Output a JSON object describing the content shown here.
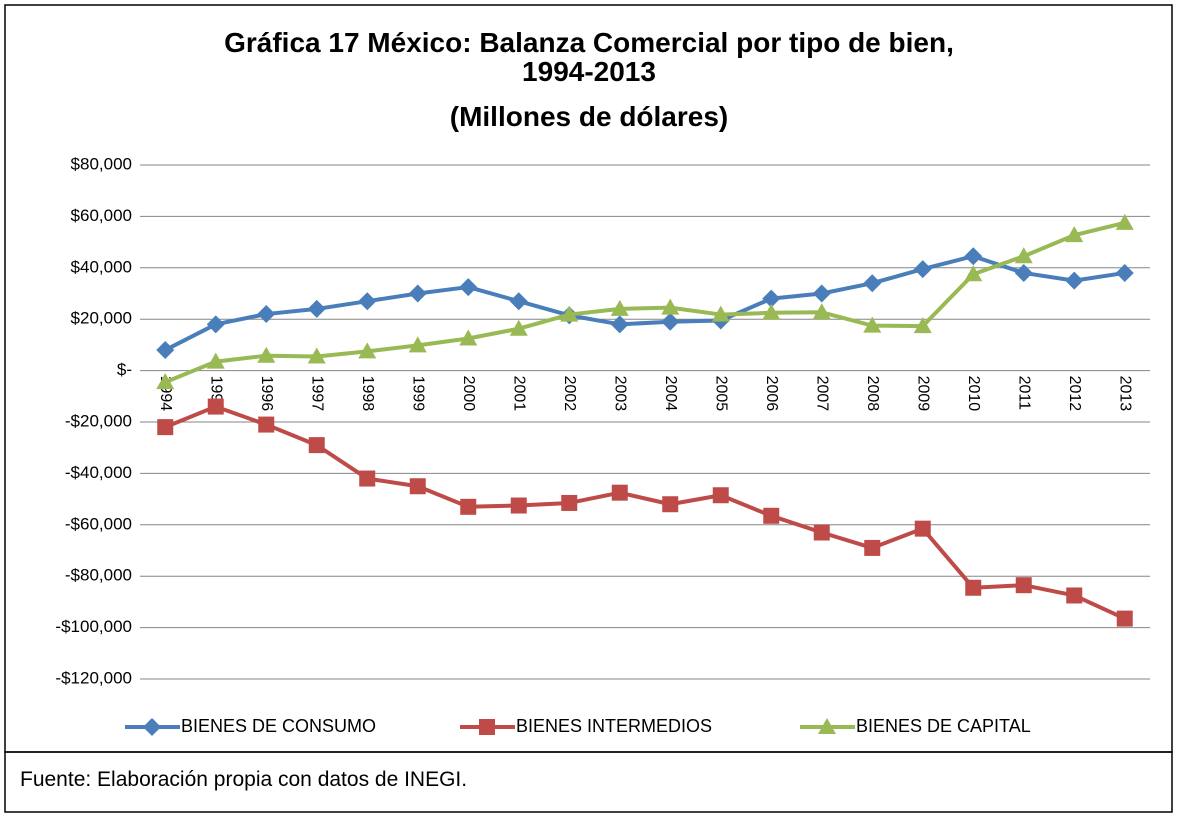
{
  "chart_data": {
    "type": "line",
    "title": "Gráfica 17 México: Balanza Comercial por tipo de bien, 1994-2013",
    "subtitle": "(Millones de dólares)",
    "source": "Fuente: Elaboración propia con datos de INEGI.",
    "categories": [
      "1994",
      "1995",
      "1996",
      "1997",
      "1998",
      "1999",
      "2000",
      "2001",
      "2002",
      "2003",
      "2004",
      "2005",
      "2006",
      "2007",
      "2008",
      "2009",
      "2010",
      "2011",
      "2012",
      "2013"
    ],
    "series": [
      {
        "name": "BIENES DE CONSUMO",
        "color": "#4a7ebb",
        "marker": "diamond",
        "values": [
          8000,
          18000,
          22000,
          24000,
          27000,
          30000,
          32500,
          27000,
          21500,
          18000,
          19000,
          19500,
          28000,
          30000,
          34000,
          39500,
          44500,
          38000,
          35000,
          38000
        ]
      },
      {
        "name": "BIENES INTERMEDIOS",
        "color": "#be4b48",
        "marker": "square",
        "values": [
          -22000,
          -14000,
          -21000,
          -29000,
          -42000,
          -45000,
          -53000,
          -52500,
          -51500,
          -47500,
          -52000,
          -48500,
          -56500,
          -63000,
          -69000,
          -61500,
          -84500,
          -83500,
          -87500,
          -96500
        ]
      },
      {
        "name": "BIENES DE CAPITAL",
        "color": "#98b954",
        "marker": "triangle",
        "values": [
          -4500,
          3500,
          5800,
          5500,
          7500,
          9800,
          12500,
          16300,
          21800,
          24000,
          24500,
          21800,
          22500,
          22700,
          17500,
          17300,
          37500,
          44500,
          52700,
          57500
        ]
      }
    ],
    "ylim": [
      -120000,
      80000
    ],
    "yticks": [
      {
        "value": -120000,
        "label": "-$120,000"
      },
      {
        "value": -100000,
        "label": "-$100,000"
      },
      {
        "value": -80000,
        "label": "-$80,000"
      },
      {
        "value": -60000,
        "label": "-$60,000"
      },
      {
        "value": -40000,
        "label": "-$40,000"
      },
      {
        "value": -20000,
        "label": "-$20,000"
      },
      {
        "value": 0,
        "label": "$-"
      },
      {
        "value": 20000,
        "label": "$20,000"
      },
      {
        "value": 40000,
        "label": "$40,000"
      },
      {
        "value": 60000,
        "label": "$60,000"
      },
      {
        "value": 80000,
        "label": "$80,000"
      }
    ],
    "grid": true,
    "legend": "bottom"
  }
}
